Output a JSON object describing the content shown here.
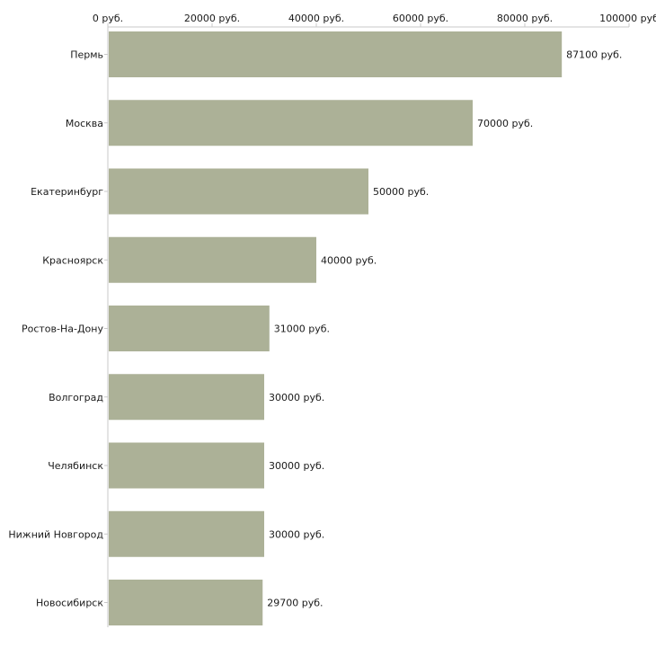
{
  "chart_data": {
    "type": "bar",
    "orientation": "horizontal",
    "unit": "руб.",
    "categories": [
      "Пермь",
      "Москва",
      "Екатеринбург",
      "Красноярск",
      "Ростов-На-Дону",
      "Волгоград",
      "Челябинск",
      "Нижний Новгород",
      "Новосибирск"
    ],
    "values": [
      87100,
      70000,
      50000,
      40000,
      31000,
      30000,
      30000,
      30000,
      29700
    ],
    "value_labels": [
      "87100 руб.",
      "70000 руб.",
      "50000 руб.",
      "40000 руб.",
      "31000 руб.",
      "30000 руб.",
      "30000 руб.",
      "30000 руб.",
      "29700 руб."
    ],
    "x_ticks": [
      0,
      20000,
      40000,
      60000,
      80000,
      100000
    ],
    "x_tick_labels": [
      "0 руб.",
      "20000 руб.",
      "40000 руб.",
      "60000 руб.",
      "80000 руб.",
      "100000 руб"
    ],
    "xlim": [
      0,
      100000
    ],
    "axis_position": "top",
    "title": "",
    "xlabel": "",
    "ylabel": "",
    "grid": false,
    "colors": {
      "bar": "#acb197",
      "axis": "#c8c8c8",
      "text": "#1a1a1a"
    }
  }
}
